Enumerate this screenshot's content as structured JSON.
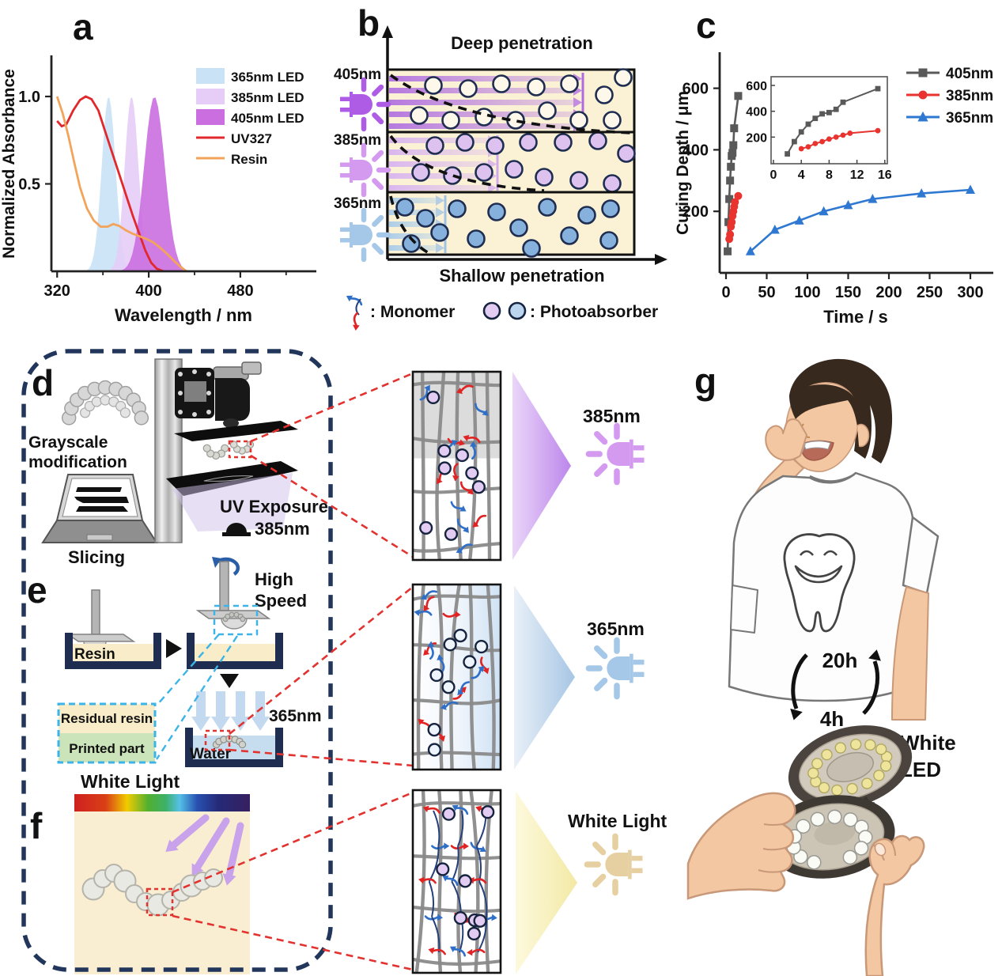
{
  "panel_a": {
    "label": "a"
  },
  "panel_b": {
    "label": "b",
    "top_caption": "Deep penetration",
    "bottom_caption": "Shallow penetration",
    "rows": [
      {
        "wavelength": "405nm"
      },
      {
        "wavelength": "385nm"
      },
      {
        "wavelength": "365nm"
      }
    ],
    "legend": {
      "monomer_label": ": Monomer",
      "photoabsorber_label": ": Photoabsorber"
    }
  },
  "panel_c": {
    "label": "c"
  },
  "panel_d": {
    "label": "d",
    "caption_line1": "Grayscale",
    "caption_line2": "modification",
    "slicing_caption": "Slicing",
    "uv_exposure": "UV Exposure",
    "wavelength": "385nm"
  },
  "panel_e": {
    "label": "e",
    "speed_line1": "High",
    "speed_line2": "Speed",
    "resin_label": "Resin",
    "residual_resin_label": "Residual resin",
    "printed_part_label": "Printed part",
    "wavelength": "365nm",
    "water_label": "Water"
  },
  "panel_f": {
    "label": "f",
    "white_light_caption": "White Light"
  },
  "zoom_boxes": [
    {
      "light_label": "385nm"
    },
    {
      "light_label": "365nm"
    },
    {
      "light_label": "White Light"
    }
  ],
  "panel_g": {
    "label": "g",
    "wear_time": "20h",
    "cure_time": "4h",
    "led_line1": "White",
    "led_line2": "LED"
  },
  "colors": {
    "cream": "#fbf2d6",
    "navy_outline": "#1e2d50",
    "border_navy": "#22365c",
    "red_dash": "#e23330",
    "cyan_dash": "#3cb4e8",
    "uv_purple": "#9b59e8",
    "led_405": "#ae5be6",
    "led_385": "#d49af0",
    "led_365": "#a5c8e8",
    "led_white": "#e6d0a2",
    "photoabsorber_lavender": "#e3ccf2",
    "photoabsorber_blue": "#8fb6de",
    "skin": "#f2c7a2",
    "printed_part_green": "#cbe4b9"
  },
  "chart_data": [
    {
      "panel": "a",
      "type": "area+line",
      "xlabel": "Wavelength / nm",
      "ylabel": "Normalized Absorbance",
      "xlim": [
        315,
        545
      ],
      "ylim": [
        0,
        1.15
      ],
      "xticks": [
        320,
        400,
        480
      ],
      "xticks_minor": [
        360,
        440,
        520
      ],
      "yticks": [
        0.5,
        1.0
      ],
      "grid": false,
      "legend_position": "top-right",
      "led_bands": [
        {
          "name": "365nm LED",
          "peak": 365,
          "sigma": 6,
          "height": 1.0,
          "color": "#c9e2f6"
        },
        {
          "name": "385nm LED",
          "peak": 385,
          "sigma": 6,
          "height": 1.0,
          "color": "#e6cdf7"
        },
        {
          "name": "405nm LED",
          "peak": 405,
          "sigma": 9,
          "height": 1.0,
          "color": "#cb6fe0"
        }
      ],
      "lines": [
        {
          "name": "UV327",
          "color": "#e0282d",
          "points": [
            [
              320,
              0.86
            ],
            [
              324,
              0.83
            ],
            [
              328,
              0.84
            ],
            [
              334,
              0.92
            ],
            [
              340,
              0.98
            ],
            [
              345,
              1.0
            ],
            [
              350,
              0.985
            ],
            [
              356,
              0.92
            ],
            [
              362,
              0.8
            ],
            [
              368,
              0.68
            ],
            [
              374,
              0.56
            ],
            [
              380,
              0.44
            ],
            [
              386,
              0.32
            ],
            [
              392,
              0.21
            ],
            [
              397,
              0.12
            ],
            [
              402,
              0.05
            ],
            [
              407,
              0.015
            ],
            [
              413,
              0.0
            ]
          ]
        },
        {
          "name": "Resin",
          "color": "#f2a45b",
          "points": [
            [
              320,
              1.0
            ],
            [
              325,
              0.9
            ],
            [
              330,
              0.77
            ],
            [
              335,
              0.62
            ],
            [
              340,
              0.48
            ],
            [
              346,
              0.36
            ],
            [
              352,
              0.29
            ],
            [
              358,
              0.255
            ],
            [
              364,
              0.255
            ],
            [
              369,
              0.27
            ],
            [
              374,
              0.26
            ],
            [
              380,
              0.235
            ],
            [
              386,
              0.215
            ],
            [
              392,
              0.2
            ],
            [
              398,
              0.185
            ],
            [
              404,
              0.165
            ],
            [
              410,
              0.135
            ],
            [
              416,
              0.1
            ],
            [
              422,
              0.06
            ],
            [
              428,
              0.025
            ],
            [
              433,
              0.0
            ]
          ]
        }
      ]
    },
    {
      "panel": "c",
      "type": "scatter-line",
      "xlabel": "Time / s",
      "ylabel": "Curing Depth / μm",
      "xlim": [
        0,
        325
      ],
      "ylim": [
        0,
        700
      ],
      "xticks": [
        0,
        50,
        100,
        150,
        200,
        250,
        300
      ],
      "yticks": [
        200,
        400,
        600
      ],
      "grid": false,
      "legend_position": "top-right",
      "series": [
        {
          "name": "405nm",
          "color": "#595959",
          "marker": "square",
          "points": [
            [
              2,
              70
            ],
            [
              3,
              165
            ],
            [
              4,
              240
            ],
            [
              5,
              300
            ],
            [
              6,
              345
            ],
            [
              7,
              380
            ],
            [
              8,
              390
            ],
            [
              9,
              415
            ],
            [
              10,
              470
            ],
            [
              15,
              575
            ]
          ]
        },
        {
          "name": "385nm",
          "color": "#e8332e",
          "marker": "circle",
          "points": [
            [
              4,
              110
            ],
            [
              5,
              125
            ],
            [
              6,
              150
            ],
            [
              7,
              165
            ],
            [
              8,
              185
            ],
            [
              9,
              200
            ],
            [
              10,
              215
            ],
            [
              11,
              230
            ],
            [
              15,
              250
            ]
          ]
        },
        {
          "name": "365nm",
          "color": "#2e78d2",
          "marker": "triangle",
          "points": [
            [
              30,
              70
            ],
            [
              60,
              140
            ],
            [
              90,
              170
            ],
            [
              120,
              200
            ],
            [
              150,
              220
            ],
            [
              180,
              240
            ],
            [
              240,
              258
            ],
            [
              300,
              270
            ]
          ]
        }
      ],
      "inset": {
        "xlim": [
          0,
          16.5
        ],
        "ylim": [
          0,
          700
        ],
        "xticks": [
          0,
          4,
          8,
          12,
          16
        ],
        "yticks": [
          200,
          400,
          600
        ],
        "series_shown": [
          "405nm",
          "385nm"
        ]
      }
    }
  ]
}
